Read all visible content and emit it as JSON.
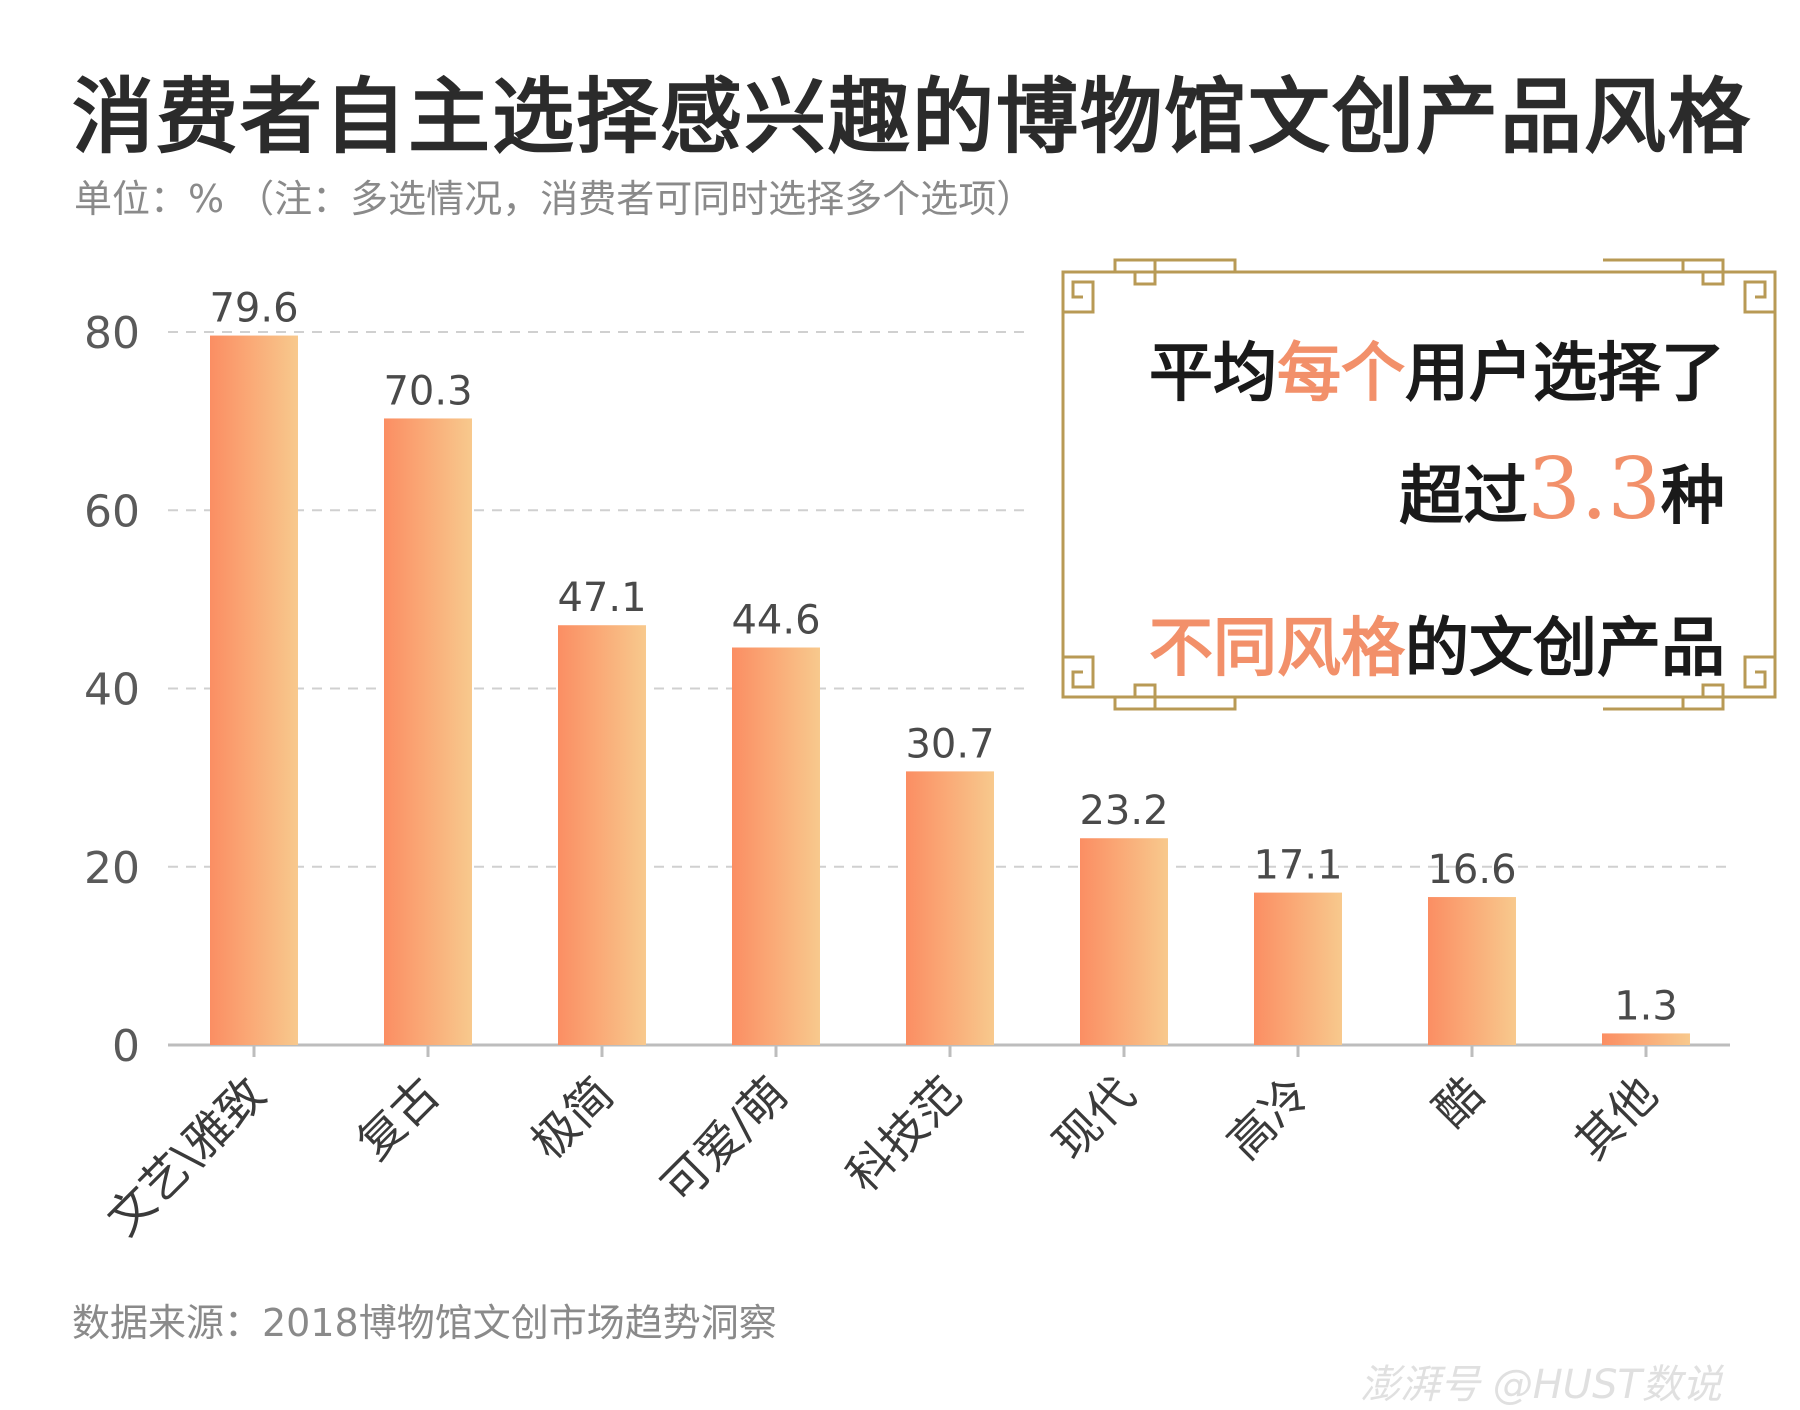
{
  "title": "消费者自主选择感兴趣的博物馆文创产品风格",
  "subtitle": "单位：% （注：多选情况，消费者可同时选择多个选项）",
  "source": "数据来源：2018博物馆文创市场趋势洞察",
  "watermark": "澎湃号 @HUST数说",
  "callout": {
    "line1_a": "平均",
    "line1_b": "每个",
    "line1_c": "用户选择了",
    "line2_a": "超过",
    "line2_b": "3.3",
    "line2_c": "种",
    "line3_a": "不同风格",
    "line3_b": "的文创产品"
  },
  "colors": {
    "bar_left": "#fb8e63",
    "bar_right": "#f8c98d",
    "highlight": "#f2906a",
    "frame": "#b89a55"
  },
  "chart_data": {
    "type": "bar",
    "categories": [
      "文艺\\雅致",
      "复古",
      "极简",
      "可爱/萌",
      "科技范",
      "现代",
      "高冷",
      "酷",
      "其他"
    ],
    "values": [
      79.6,
      70.3,
      47.1,
      44.6,
      30.7,
      23.2,
      17.1,
      16.6,
      1.3
    ],
    "ylim": [
      0,
      80
    ],
    "yticks": [
      0,
      20,
      40,
      60,
      80
    ],
    "grid": true
  }
}
